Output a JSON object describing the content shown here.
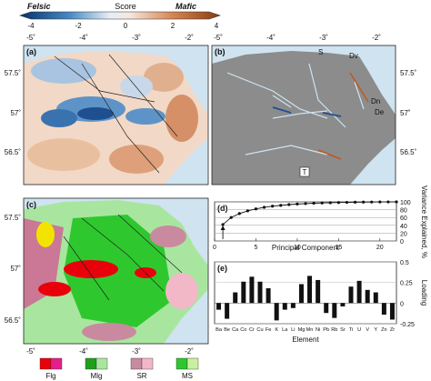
{
  "colorbar": {
    "title": "Score",
    "left_label": "Felsic",
    "right_label": "Mafic",
    "ticks": [
      "-4",
      "-2",
      "0",
      "2",
      "4"
    ]
  },
  "map_axes": {
    "lon_ticks": [
      "-5˚",
      "-4˚",
      "-3˚",
      "-2˚"
    ],
    "lat_ticks": [
      "57.5˚",
      "57˚",
      "56.5˚"
    ]
  },
  "panels": {
    "a": "(a)",
    "b": "(b)",
    "c": "(c)",
    "d": "(d)",
    "e": "(e)"
  },
  "rivers": {
    "S": "S",
    "Dv": "Dv",
    "Dn": "Dn",
    "De": "De",
    "T": "T"
  },
  "legend_c": [
    {
      "label": "Flg",
      "colors": [
        "#e8000b",
        "#e61e8c"
      ]
    },
    {
      "label": "Mlg",
      "colors": [
        "#1ea01e",
        "#a8e6a0"
      ]
    },
    {
      "label": "SR",
      "colors": [
        "#c98aa0",
        "#f2b8c8"
      ]
    },
    {
      "label": "MS",
      "colors": [
        "#2ec82e",
        "#c8f0a0"
      ]
    }
  ],
  "colors": {
    "felsic": "#1f5fa8",
    "mafic": "#c0581e",
    "sea": "#cfe3f0",
    "land_gray": "#8c8c8c"
  },
  "chart_data": [
    {
      "type": "line",
      "panel": "(d)",
      "xlabel": "Principal Component",
      "ylabel": "Variance Explained, %",
      "xlim": [
        0,
        22
      ],
      "ylim": [
        0,
        100
      ],
      "xticks": [
        "0",
        "5",
        "10",
        "15",
        "20"
      ],
      "yticks": [
        "0",
        "20",
        "40",
        "60",
        "80",
        "100"
      ],
      "x": [
        1,
        2,
        3,
        4,
        5,
        6,
        7,
        8,
        9,
        10,
        11,
        12,
        13,
        14,
        15,
        16,
        17,
        18,
        19,
        20,
        21,
        22
      ],
      "values": [
        42,
        60,
        70,
        77,
        82,
        86,
        89,
        91,
        93,
        94.5,
        95.5,
        96.5,
        97.2,
        97.8,
        98.3,
        98.7,
        99.1,
        99.4,
        99.6,
        99.8,
        99.9,
        100
      ],
      "annotation": "arrow at component 1"
    },
    {
      "type": "bar",
      "panel": "(e)",
      "xlabel": "Element",
      "ylabel": "Loading",
      "ylim": [
        -0.25,
        0.5
      ],
      "yticks": [
        "0.5",
        "0.25",
        "0",
        "-0.25"
      ],
      "categories": [
        "Ba",
        "Be",
        "Ca",
        "Co",
        "Cr",
        "Cu",
        "Fe",
        "K",
        "La",
        "Li",
        "Mg",
        "Mn",
        "Ni",
        "Pb",
        "Rb",
        "Sr",
        "Ti",
        "U",
        "V",
        "Y",
        "Zn",
        "Zr"
      ],
      "values": [
        -0.08,
        -0.19,
        0.13,
        0.26,
        0.32,
        0.26,
        0.18,
        -0.21,
        -0.08,
        -0.06,
        0.23,
        0.33,
        0.28,
        -0.12,
        -0.18,
        -0.04,
        0.2,
        0.27,
        0.16,
        0.13,
        -0.14,
        -0.2
      ]
    }
  ]
}
